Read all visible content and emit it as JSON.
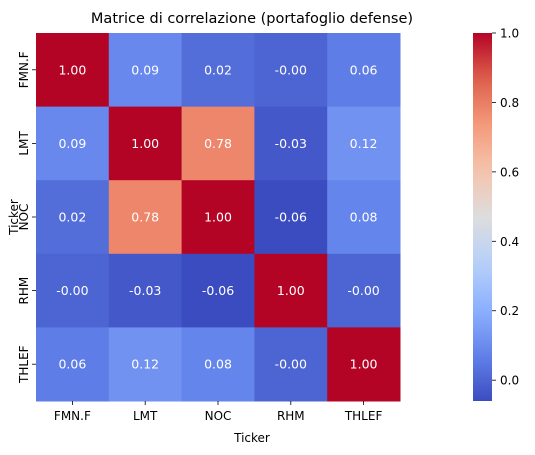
{
  "chart_data": {
    "type": "heatmap",
    "title": "Matrice di correlazione (portafoglio defense)",
    "xlabel": "Ticker",
    "ylabel": "Ticker",
    "x_categories": [
      "FMN.F",
      "LMT",
      "NOC",
      "RHM",
      "THLEF"
    ],
    "y_categories": [
      "FMN.F",
      "LMT",
      "NOC",
      "RHM",
      "THLEF"
    ],
    "values": [
      [
        1.0,
        0.09,
        0.02,
        -0.0,
        0.06
      ],
      [
        0.09,
        1.0,
        0.78,
        -0.03,
        0.12
      ],
      [
        0.02,
        0.78,
        1.0,
        -0.06,
        0.08
      ],
      [
        -0.0,
        -0.03,
        -0.06,
        1.0,
        -0.0
      ],
      [
        0.06,
        0.12,
        0.08,
        -0.0,
        1.0
      ]
    ],
    "annotations": [
      [
        "1.00",
        "0.09",
        "0.02",
        "-0.00",
        "0.06"
      ],
      [
        "0.09",
        "1.00",
        "0.78",
        "-0.03",
        "0.12"
      ],
      [
        "0.02",
        "0.78",
        "1.00",
        "-0.06",
        "0.08"
      ],
      [
        "-0.00",
        "-0.03",
        "-0.06",
        "1.00",
        "-0.00"
      ],
      [
        "0.06",
        "0.12",
        "0.08",
        "-0.00",
        "1.00"
      ]
    ],
    "colormap": "coolwarm",
    "vmin": -0.06,
    "vmax": 1.0,
    "colorbar_ticks": [
      0.0,
      0.2,
      0.4,
      0.6,
      0.8,
      1.0
    ],
    "colorbar_tick_labels": [
      "0.0",
      "0.2",
      "0.4",
      "0.6",
      "0.8",
      "1.0"
    ],
    "colors": {
      "low": "#3b4cc0",
      "mid": "#dddddd",
      "high": "#b40426"
    }
  }
}
